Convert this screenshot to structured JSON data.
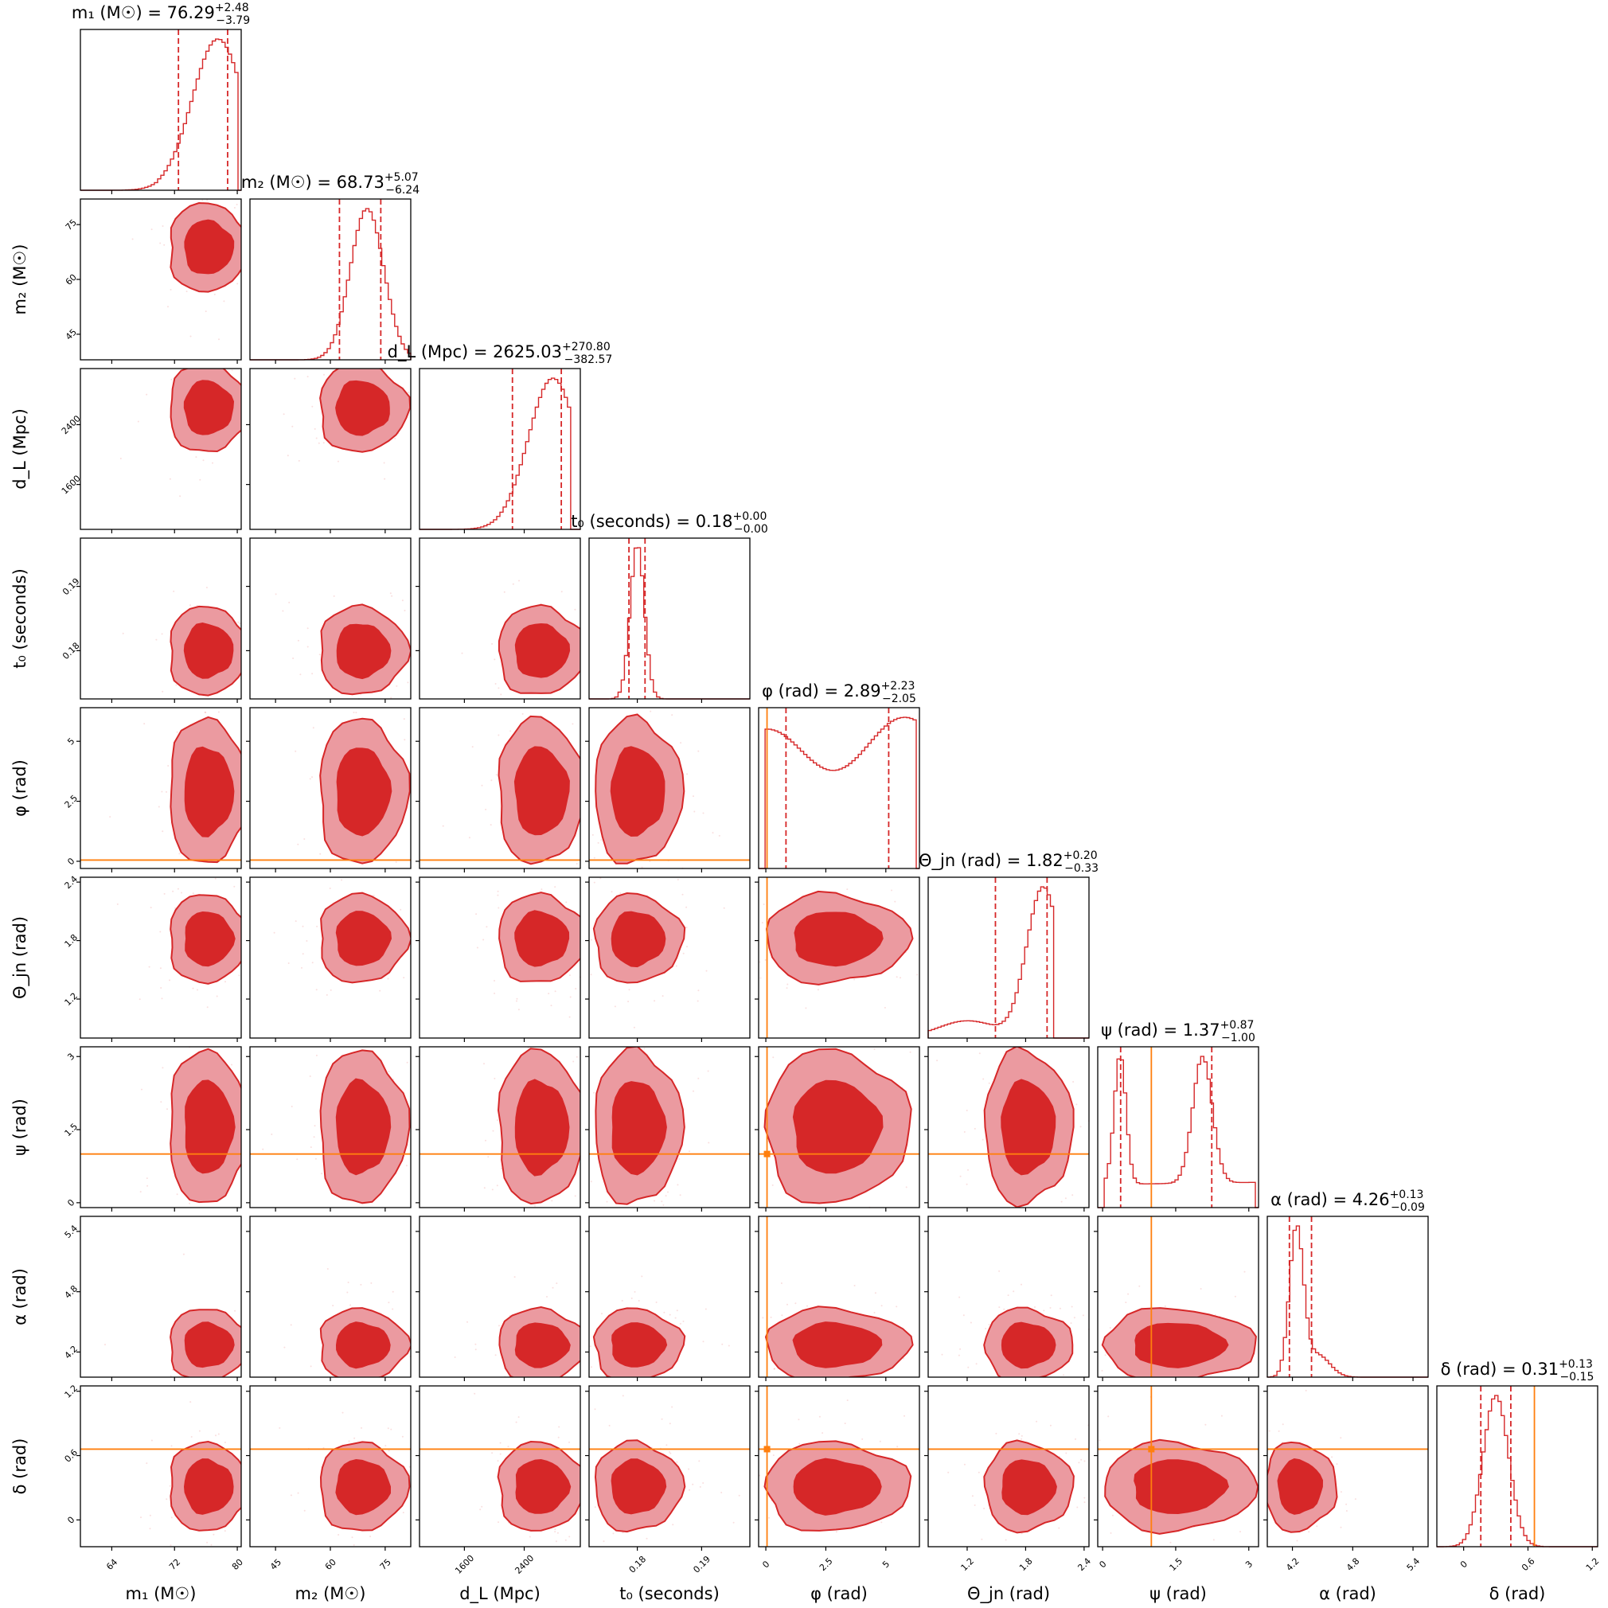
{
  "chart_data": {
    "type": "corner",
    "color": "#d62728",
    "truth_color": "#ff7f0e",
    "parameters": [
      {
        "key": "m1",
        "label": "m₁ (M☉)",
        "range": [
          60,
          80.5
        ],
        "ticks": [
          64,
          72,
          80
        ],
        "median": 76.29,
        "plus": 2.48,
        "minus": 3.79,
        "q_low": 72.5,
        "q_high": 78.77,
        "title_main": "m₁ (M☉) = 76.29",
        "title_plus": "+2.48",
        "title_minus": "−3.79",
        "truth": null
      },
      {
        "key": "m2",
        "label": "m₂ (M☉)",
        "range": [
          38,
          82
        ],
        "ticks": [
          45,
          60,
          75
        ],
        "median": 68.73,
        "plus": 5.07,
        "minus": 6.24,
        "q_low": 62.49,
        "q_high": 73.8,
        "title_main": "m₂ (M☉) = 68.73",
        "title_plus": "+5.07",
        "title_minus": "−6.24",
        "truth": null
      },
      {
        "key": "dL",
        "label": "d_L (Mpc)",
        "range": [
          1000,
          3150
        ],
        "ticks": [
          1600,
          2400
        ],
        "median": 2625.03,
        "plus": 270.8,
        "minus": 382.57,
        "q_low": 2242.46,
        "q_high": 2895.83,
        "title_main": "d_L (Mpc) = 2625.03",
        "title_plus": "+270.80",
        "title_minus": "−382.57",
        "truth": null
      },
      {
        "key": "t0",
        "label": "t₀ (seconds)",
        "range": [
          0.1725,
          0.1975
        ],
        "ticks": [
          0.18,
          0.19
        ],
        "median": 0.18,
        "plus": 0.0,
        "minus": 0.0,
        "q_low": 0.1787,
        "q_high": 0.1812,
        "title_main": "t₀ (seconds) = 0.18",
        "title_plus": "+0.00",
        "title_minus": "−0.00",
        "truth": null
      },
      {
        "key": "phi",
        "label": "φ (rad)",
        "range": [
          -0.3,
          6.4
        ],
        "ticks": [
          0.0,
          2.5,
          5.0
        ],
        "median": 2.89,
        "plus": 2.23,
        "minus": 2.05,
        "q_low": 0.84,
        "q_high": 5.12,
        "title_main": "φ (rad) = 2.89",
        "title_plus": "+2.23",
        "title_minus": "−2.05",
        "truth": 0.05
      },
      {
        "key": "theta_jn",
        "label": "Θ_jn (rad)",
        "range": [
          0.8,
          2.45
        ],
        "ticks": [
          1.2,
          1.8,
          2.4
        ],
        "median": 1.82,
        "plus": 0.2,
        "minus": 0.33,
        "q_low": 1.49,
        "q_high": 2.02,
        "title_main": "Θ_jn (rad) = 1.82",
        "title_plus": "+0.20",
        "title_minus": "−0.33",
        "truth": null
      },
      {
        "key": "psi",
        "label": "ψ (rad)",
        "range": [
          -0.1,
          3.2
        ],
        "ticks": [
          0.0,
          1.5,
          3.0
        ],
        "median": 1.37,
        "plus": 0.87,
        "minus": 1.0,
        "q_low": 0.37,
        "q_high": 2.24,
        "title_main": "ψ (rad) = 1.37",
        "title_plus": "+0.87",
        "title_minus": "−1.00",
        "truth": 1.0
      },
      {
        "key": "alpha",
        "label": "α (rad)",
        "range": [
          3.95,
          5.55
        ],
        "ticks": [
          4.2,
          4.8,
          5.4
        ],
        "median": 4.26,
        "plus": 0.13,
        "minus": 0.09,
        "q_low": 4.17,
        "q_high": 4.39,
        "title_main": "α (rad) = 4.26",
        "title_plus": "+0.13",
        "title_minus": "−0.09",
        "truth": null
      },
      {
        "key": "delta",
        "label": "δ (rad)",
        "range": [
          -0.25,
          1.25
        ],
        "ticks": [
          0.0,
          0.6,
          1.2
        ],
        "median": 0.31,
        "plus": 0.13,
        "minus": 0.15,
        "q_low": 0.16,
        "q_high": 0.44,
        "title_main": "δ (rad) = 0.31",
        "title_plus": "+0.13",
        "title_minus": "−0.15",
        "truth": 0.66
      }
    ]
  }
}
